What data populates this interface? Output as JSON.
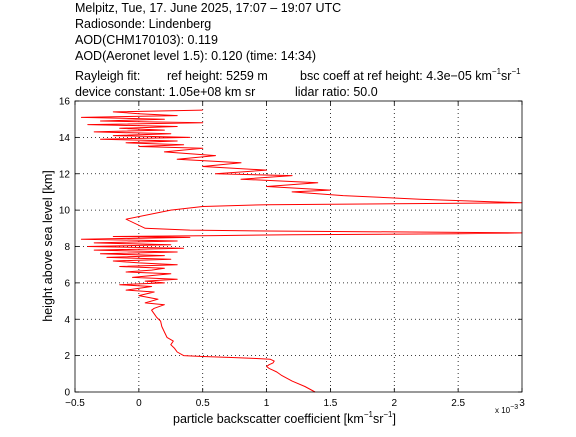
{
  "header": {
    "line1": "Melpitz, Tue, 17. June 2025, 17:07 – 19:07 UTC",
    "line2": "Radiosonde: Lindenberg",
    "line3": "AOD(CHM170103): 0.119",
    "line4": "AOD(Aeronet level 1.5): 0.120   (time: 14:34)",
    "line5_a": "Rayleigh fit:",
    "line5_b": "ref height: 5259 m",
    "line5_c": "bsc coeff at ref height: 4.3e−05 km",
    "line5_unit_sup1": "−1",
    "line5_unit_mid": "sr",
    "line5_unit_sup2": "−1",
    "line6_a": "device constant: 1.05e+08 km sr",
    "line6_b": "lidar ratio: 50.0"
  },
  "chart_data": {
    "type": "line",
    "xlabel_main": "particle backscatter coefficient [km",
    "xlabel_sup1": "−1",
    "xlabel_mid": "sr",
    "xlabel_sup2": "−1",
    "xlabel_end": "]",
    "ylabel": "height above sea level [km]",
    "x_multiplier": "x 10",
    "x_multiplier_exp": "−3",
    "xlim": [
      -0.5,
      3
    ],
    "ylim": [
      0,
      16
    ],
    "xticks": [
      -0.5,
      0,
      0.5,
      1,
      1.5,
      2,
      2.5,
      3
    ],
    "xtick_labels": [
      "−0.5",
      "0",
      "0.5",
      "1",
      "1.5",
      "2",
      "2.5",
      "3"
    ],
    "yticks": [
      0,
      2,
      4,
      6,
      8,
      10,
      12,
      14,
      16
    ],
    "ytick_labels": [
      "0",
      "2",
      "4",
      "6",
      "8",
      "10",
      "12",
      "14",
      "16"
    ],
    "grid": true,
    "line_color": "#ff0000",
    "series": [
      {
        "x": [
          1.38,
          1.3,
          1.2,
          1.12,
          1.08,
          1.05,
          1.02,
          1.0,
          1.02,
          1.05,
          1.06,
          1.03,
          0.9,
          0.7,
          0.5,
          0.35,
          0.3,
          0.28,
          0.25,
          0.27,
          0.22,
          0.2,
          0.18,
          0.17,
          0.14,
          0.12,
          0.1,
          0.12,
          0.2,
          0.05,
          0.15,
          0.0,
          0.12,
          -0.1,
          0.1,
          -0.15,
          0.2,
          0.05,
          0.3,
          -0.05,
          0.25,
          -0.1,
          0.1,
          0.2,
          -0.15,
          0.3,
          0.0,
          -0.2,
          0.25,
          -0.25,
          0.2,
          -0.3,
          0.3,
          -0.35,
          0.35,
          -0.4,
          0.25,
          -0.35,
          0.3,
          -0.45,
          0.4,
          -0.2,
          0.6,
          1.2,
          2.5,
          3.0,
          2.0,
          1.0,
          0.4,
          0.05,
          -0.1,
          0.25,
          0.5,
          1.0,
          2.0,
          3.0,
          2.2,
          1.6,
          1.2,
          1.5,
          1.0,
          1.4,
          0.8,
          1.2,
          0.6,
          1.0,
          0.5,
          0.8,
          0.3,
          0.6,
          0.2,
          0.5,
          0.0,
          0.35,
          -0.1,
          0.3,
          -0.3,
          0.4,
          -0.2,
          0.25,
          -0.35,
          0.2,
          -0.15,
          0.3,
          -0.4,
          0.5,
          -0.3,
          0.2,
          -0.45,
          0.3,
          0.0,
          -0.2,
          0.5
        ],
        "y": [
          0.0,
          0.3,
          0.6,
          0.9,
          1.1,
          1.2,
          1.3,
          1.4,
          1.5,
          1.6,
          1.7,
          1.8,
          1.85,
          1.9,
          1.95,
          2.0,
          2.2,
          2.4,
          2.6,
          2.8,
          3.0,
          3.3,
          3.6,
          3.9,
          4.1,
          4.3,
          4.5,
          4.6,
          4.8,
          4.9,
          5.1,
          5.3,
          5.5,
          5.6,
          5.8,
          5.9,
          6.0,
          6.1,
          6.2,
          6.3,
          6.5,
          6.6,
          6.7,
          6.8,
          6.9,
          7.0,
          7.1,
          7.2,
          7.3,
          7.4,
          7.5,
          7.6,
          7.7,
          7.8,
          7.9,
          8.0,
          8.1,
          8.2,
          8.3,
          8.4,
          8.5,
          8.55,
          8.6,
          8.65,
          8.7,
          8.75,
          8.8,
          8.85,
          8.9,
          9.0,
          9.5,
          10.0,
          10.2,
          10.3,
          10.35,
          10.4,
          10.6,
          10.8,
          11.0,
          11.1,
          11.3,
          11.5,
          11.7,
          11.9,
          12.0,
          12.2,
          12.4,
          12.6,
          12.8,
          13.0,
          13.2,
          13.4,
          13.5,
          13.6,
          13.7,
          13.8,
          13.9,
          14.0,
          14.1,
          14.2,
          14.3,
          14.4,
          14.5,
          14.6,
          14.7,
          14.8,
          14.9,
          15.0,
          15.1,
          15.2,
          15.3,
          15.4,
          15.5
        ]
      }
    ]
  }
}
